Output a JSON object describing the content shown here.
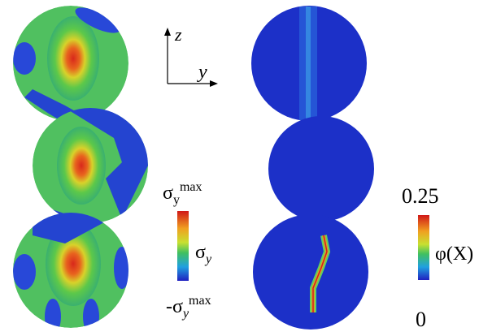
{
  "axes": {
    "vertical": "z",
    "horizontal": "y"
  },
  "left_colorbar": {
    "top": {
      "symbol": "σ",
      "sub": "y",
      "sup": "max"
    },
    "middle": {
      "symbol": "σ",
      "sub": "y"
    },
    "bottom": {
      "symbol": "-σ",
      "sub": "y",
      "sup": "max"
    }
  },
  "right_colorbar": {
    "top": "0.25",
    "middle": "φ(X)",
    "bottom": "0"
  }
}
